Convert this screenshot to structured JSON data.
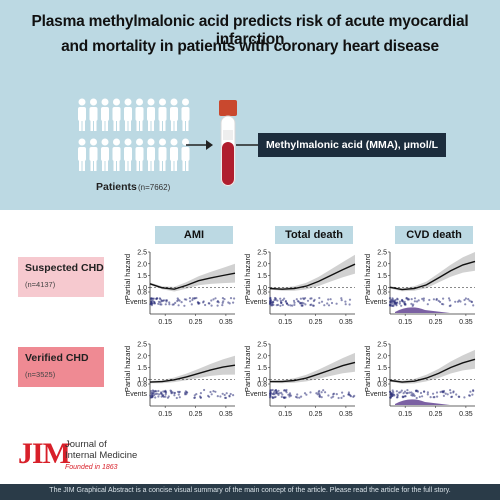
{
  "header": {
    "title_line1": "Plasma methylmalonic acid predicts risk of acute myocardial infarction",
    "title_line2": "and mortality in patients with coronary heart disease",
    "patients_label": "Patients",
    "patients_n": "(n=7662)",
    "mma_label": "Methylmalonic acid (MMA), μmol/L"
  },
  "columns": [
    "AMI",
    "Total death",
    "CVD death"
  ],
  "rows": [
    {
      "title": "Suspected CHD",
      "n": "(n=4137)",
      "box_color": "#f6c9cf"
    },
    {
      "title": "Verified CHD",
      "n": "(n=3525)",
      "box_color": "#ef8a93"
    }
  ],
  "axis_labels": {
    "ylabel": "Partial hazard",
    "events": "Events",
    "yticks": [
      "2.5",
      "2.0",
      "1.5",
      "1.0",
      "0.8"
    ],
    "xticks": [
      "0.15",
      "0.25",
      "0.35"
    ]
  },
  "colors": {
    "accent": "#bcd9e3",
    "mma_box": "#1c2d3d",
    "jim_red": "#d8202a",
    "events": "#2b2f7a",
    "band": "#c9c9c9"
  },
  "logo": {
    "mark": "JIM",
    "name_line1": "Journal of",
    "name_line2": "Internal Medicine",
    "founded": "Founded in 1863"
  },
  "footer": {
    "text": "The JIM Graphical Abstract is a concise visual summary of the main concept of the article. Please read the article for the full story."
  },
  "chart_data": [
    {
      "type": "line",
      "row": "Suspected CHD",
      "column": "AMI",
      "x": [
        0.1,
        0.14,
        0.18,
        0.22,
        0.26,
        0.3,
        0.34,
        0.38
      ],
      "y": [
        1.15,
        0.98,
        0.92,
        1.08,
        1.28,
        1.4,
        1.5,
        1.6
      ],
      "ylim": [
        0.8,
        2.5
      ],
      "reference": 1.0
    },
    {
      "type": "line",
      "row": "Suspected CHD",
      "column": "Total death",
      "x": [
        0.1,
        0.14,
        0.18,
        0.22,
        0.26,
        0.3,
        0.34,
        0.38
      ],
      "y": [
        0.95,
        0.92,
        0.95,
        1.05,
        1.25,
        1.5,
        1.75,
        1.98
      ],
      "ylim": [
        0.8,
        2.5
      ],
      "reference": 1.0
    },
    {
      "type": "line",
      "row": "Suspected CHD",
      "column": "CVD death",
      "x": [
        0.1,
        0.14,
        0.18,
        0.22,
        0.26,
        0.3,
        0.34,
        0.38
      ],
      "y": [
        1.0,
        0.9,
        0.95,
        1.1,
        1.4,
        1.7,
        1.95,
        2.1
      ],
      "ylim": [
        0.8,
        2.5
      ],
      "reference": 1.0
    },
    {
      "type": "line",
      "row": "Verified CHD",
      "column": "AMI",
      "x": [
        0.1,
        0.14,
        0.18,
        0.22,
        0.26,
        0.3,
        0.34,
        0.38
      ],
      "y": [
        0.88,
        0.9,
        0.98,
        1.1,
        1.25,
        1.4,
        1.52,
        1.6
      ],
      "ylim": [
        0.8,
        2.5
      ],
      "reference": 1.0
    },
    {
      "type": "line",
      "row": "Verified CHD",
      "column": "Total death",
      "x": [
        0.1,
        0.14,
        0.18,
        0.22,
        0.26,
        0.3,
        0.34,
        0.38
      ],
      "y": [
        0.9,
        0.9,
        0.95,
        1.05,
        1.22,
        1.4,
        1.58,
        1.72
      ],
      "ylim": [
        0.8,
        2.5
      ],
      "reference": 1.0
    },
    {
      "type": "line",
      "row": "Verified CHD",
      "column": "CVD death",
      "x": [
        0.1,
        0.14,
        0.18,
        0.22,
        0.26,
        0.3,
        0.34,
        0.38
      ],
      "y": [
        0.95,
        0.88,
        0.92,
        1.05,
        1.25,
        1.5,
        1.7,
        1.85
      ],
      "ylim": [
        0.8,
        2.5
      ],
      "reference": 1.0
    }
  ]
}
